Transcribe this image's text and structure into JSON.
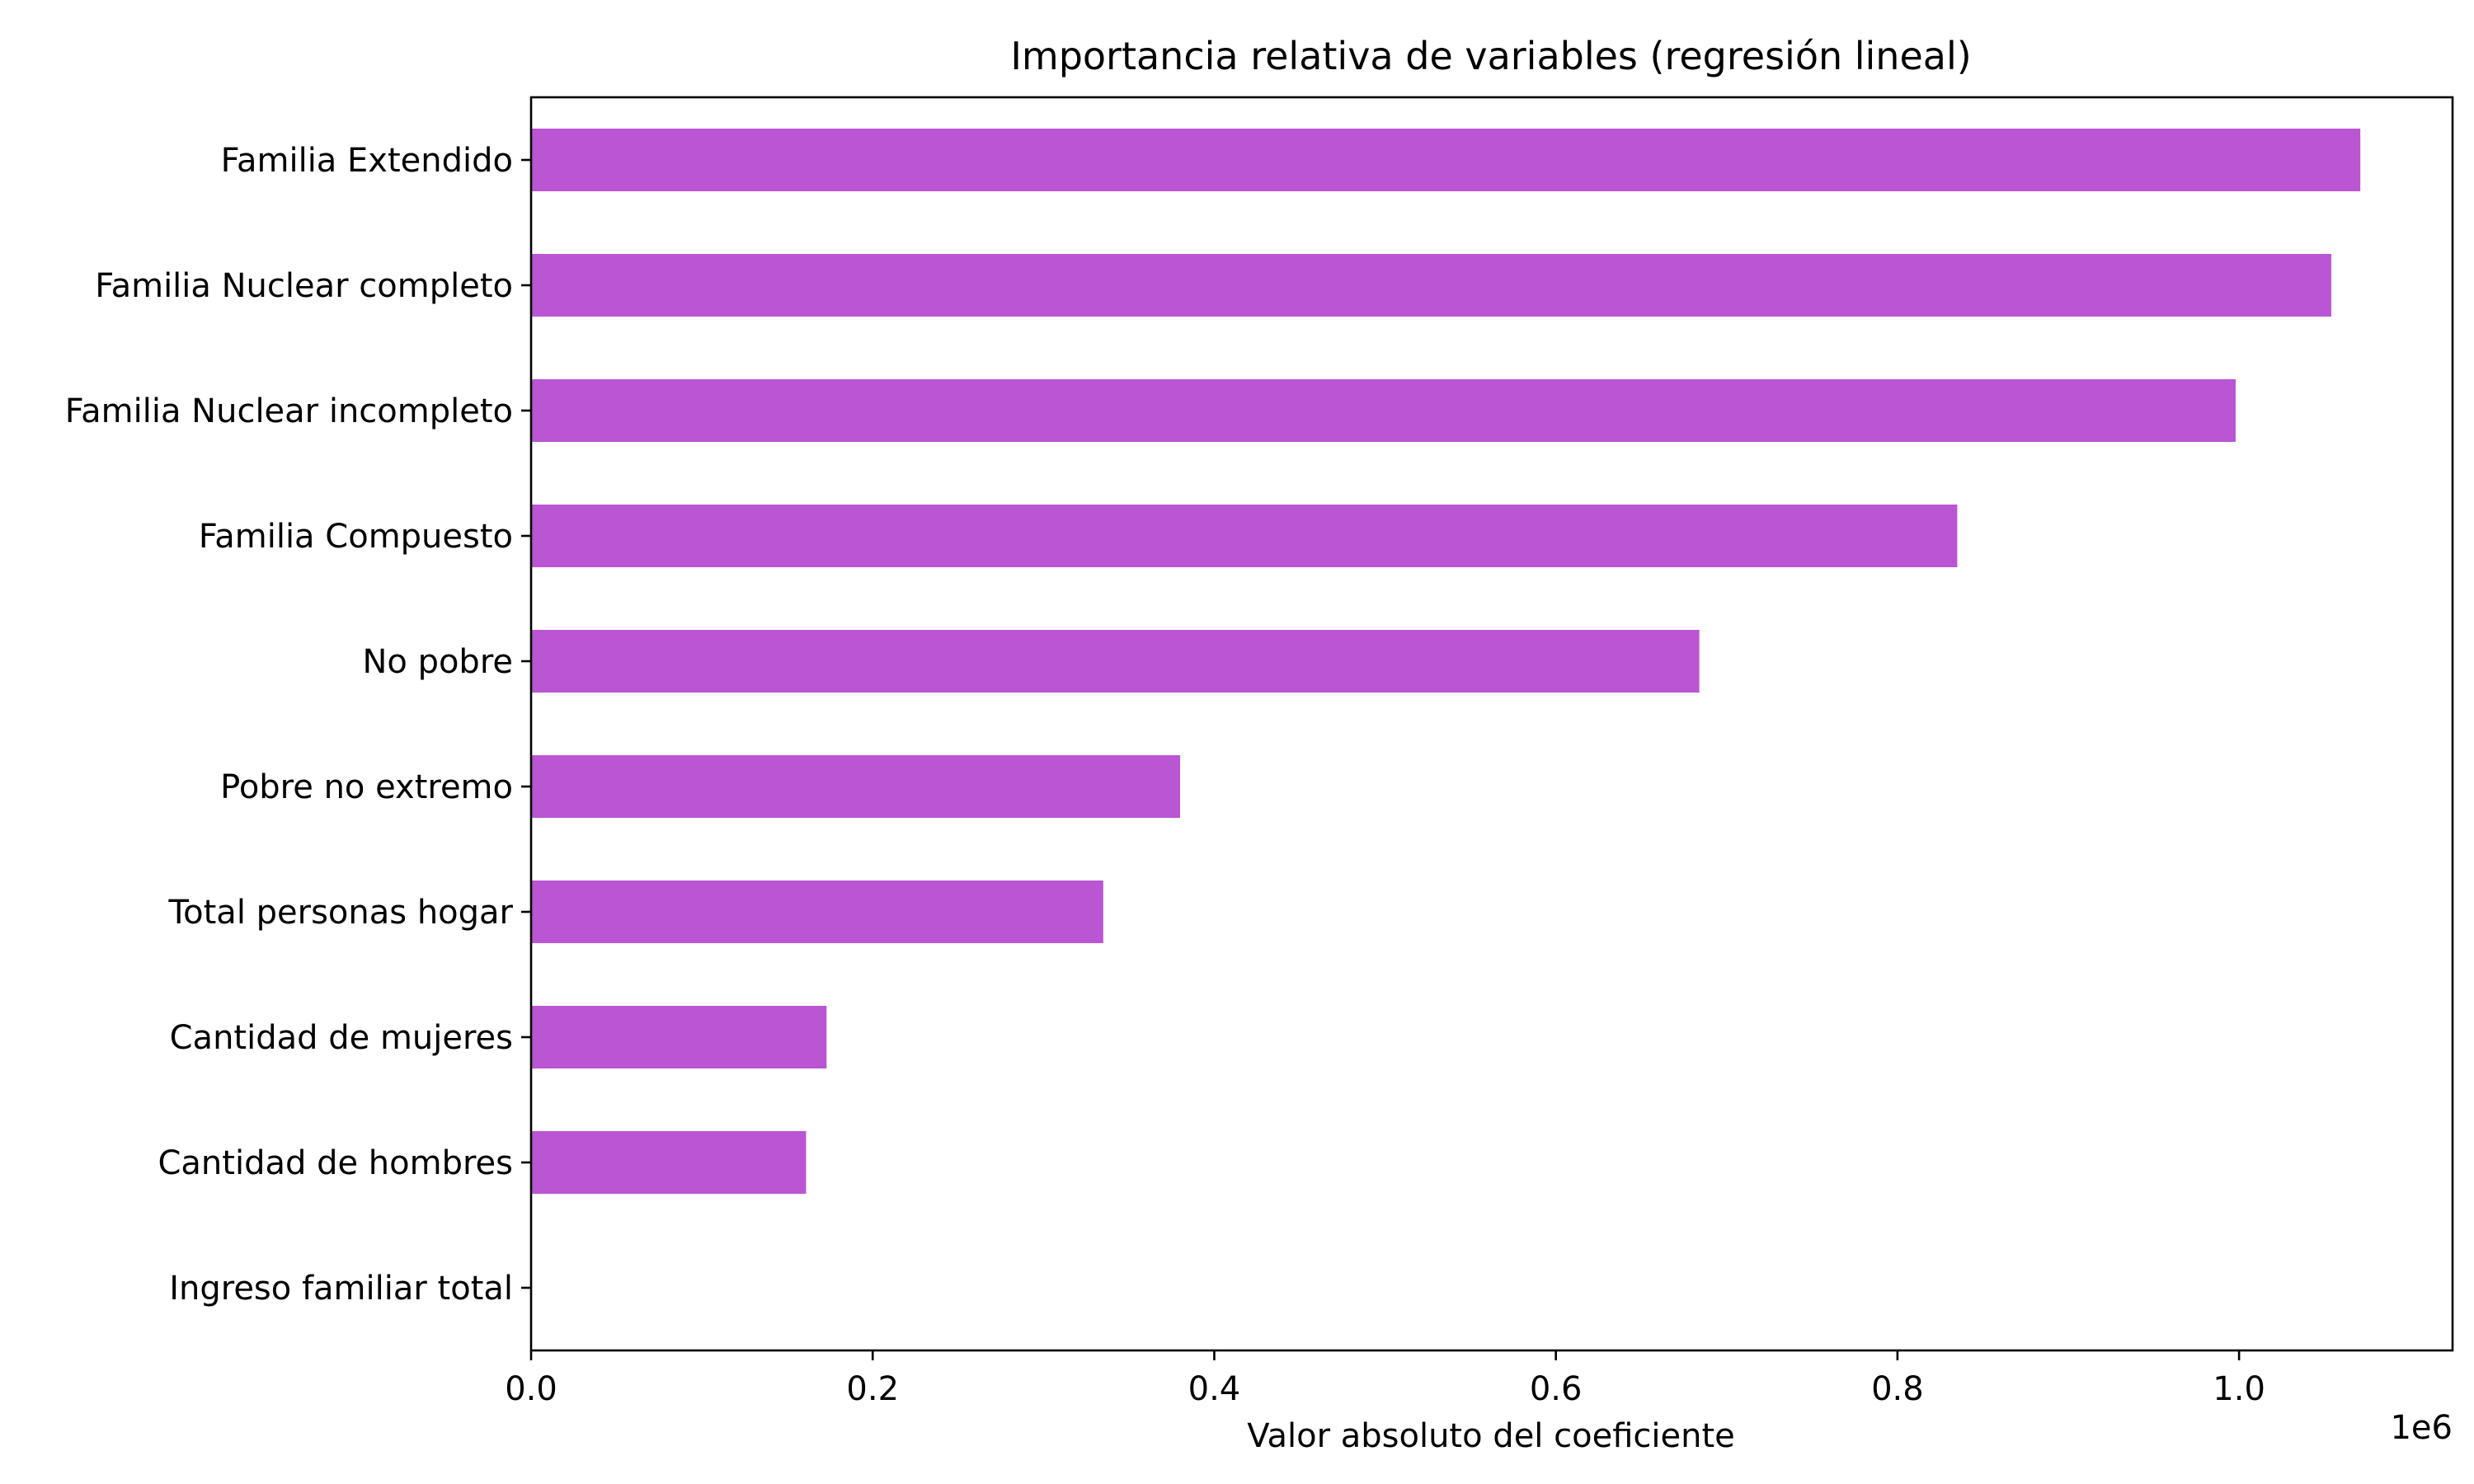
{
  "chart_data": {
    "type": "bar",
    "orientation": "horizontal",
    "title": "Importancia relativa de variables (regresión lineal)",
    "xlabel": "Valor absoluto del coeficiente",
    "ylabel": "",
    "x_offset_label": "1e6",
    "x_multiplier": 1000000,
    "xlim": [
      0,
      1.125
    ],
    "xticks": [
      0.0,
      0.2,
      0.4,
      0.6,
      0.8,
      1.0
    ],
    "xtick_labels": [
      "0.0",
      "0.2",
      "0.4",
      "0.6",
      "0.8",
      "1.0"
    ],
    "categories": [
      "Familia Extendido",
      "Familia Nuclear completo",
      "Familia Nuclear incompleto",
      "Familia Compuesto",
      "No pobre",
      "Pobre no extremo",
      "Total personas hogar",
      "Cantidad de mujeres",
      "Cantidad de hombres",
      "Ingreso familiar total"
    ],
    "values": [
      1.071,
      1.054,
      0.998,
      0.835,
      0.684,
      0.38,
      0.335,
      0.173,
      0.161,
      0.0
    ],
    "bar_color": "#ba55d3",
    "grid": false,
    "legend": "none"
  }
}
